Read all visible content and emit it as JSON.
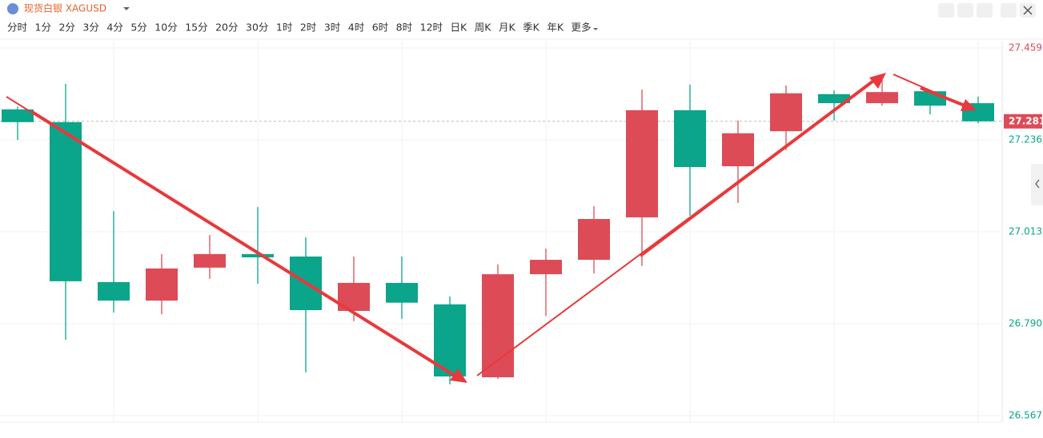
{
  "header": {
    "title": "现货白银 XAGUSD",
    "periods": [
      "分时",
      "1分",
      "2分",
      "3分",
      "4分",
      "5分",
      "10分",
      "15分",
      "20分",
      "30分",
      "1时",
      "2时",
      "3时",
      "4时",
      "6时",
      "8时",
      "12时",
      "日K",
      "周K",
      "月K",
      "季K",
      "年K",
      "更多"
    ],
    "active_period": "1时"
  },
  "chart_data": {
    "type": "candlestick",
    "open": [
      27.31,
      27.279,
      26.891,
      26.846,
      26.926,
      26.959,
      26.953,
      26.821,
      26.889,
      26.837,
      26.66,
      26.91,
      26.945,
      27.048,
      27.308,
      27.172,
      27.257,
      27.347,
      27.325,
      27.354,
      27.325
    ],
    "high": [
      27.317,
      27.372,
      27.063,
      26.959,
      27.005,
      27.073,
      27.0,
      26.953,
      26.953,
      26.856,
      26.934,
      26.972,
      27.075,
      27.358,
      27.37,
      27.283,
      27.368,
      27.356,
      27.391,
      27.356,
      27.341
    ],
    "low": [
      27.236,
      26.751,
      26.817,
      26.813,
      26.899,
      26.887,
      26.672,
      26.796,
      26.802,
      26.643,
      26.656,
      26.809,
      26.912,
      26.93,
      27.052,
      27.083,
      27.211,
      27.283,
      27.319,
      27.298,
      27.276
    ],
    "close": [
      27.279,
      26.893,
      26.846,
      26.924,
      26.959,
      26.951,
      26.823,
      26.889,
      26.841,
      26.662,
      26.91,
      26.945,
      27.044,
      27.308,
      27.17,
      27.252,
      27.349,
      27.325,
      27.352,
      27.319,
      27.281
    ],
    "up_color": "#dd4b57",
    "down_color": "#0aa58a",
    "current_price": 27.281,
    "ylim": [
      26.567,
      27.459
    ],
    "yticks": [
      {
        "value": 26.567,
        "label": "26.567"
      },
      {
        "value": 26.79,
        "label": "26.790"
      },
      {
        "value": 27.013,
        "label": "27.013"
      },
      {
        "value": 27.236,
        "label": "27.236"
      },
      {
        "value": 27.459,
        "label": "27.459"
      }
    ],
    "grid": true
  }
}
